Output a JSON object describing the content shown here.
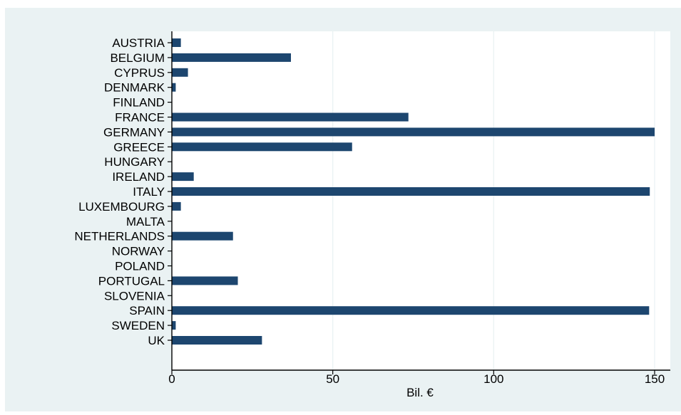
{
  "chart_data": {
    "type": "bar",
    "orientation": "horizontal",
    "title": "",
    "ylabel": "",
    "xlabel": "Bil. €",
    "xlim": [
      0,
      150
    ],
    "xticks": [
      0,
      50,
      100,
      150
    ],
    "grid": true,
    "legend": "none",
    "categories": [
      "AUSTRIA",
      "BELGIUM",
      "CYPRUS",
      "DENMARK",
      "FINLAND",
      "FRANCE",
      "GERMANY",
      "GREECE",
      "HUNGARY",
      "IRELAND",
      "ITALY",
      "LUXEMBOURG",
      "MALTA",
      "NETHERLANDS",
      "NORWAY",
      "POLAND",
      "PORTUGAL",
      "SLOVENIA",
      "SPAIN",
      "SWEDEN",
      "UK"
    ],
    "values": [
      2.8,
      37,
      5,
      1.2,
      0,
      73.5,
      150,
      56,
      0,
      6.8,
      148.5,
      2.8,
      0,
      19,
      0,
      0,
      20.5,
      0,
      148.3,
      1.2,
      28
    ],
    "colors": {
      "bar": "#1d466f",
      "plot_background": "#ffffff",
      "outer_background": "#eaf2f3",
      "grid": "#eaf2f3",
      "axis": "#000000"
    }
  }
}
